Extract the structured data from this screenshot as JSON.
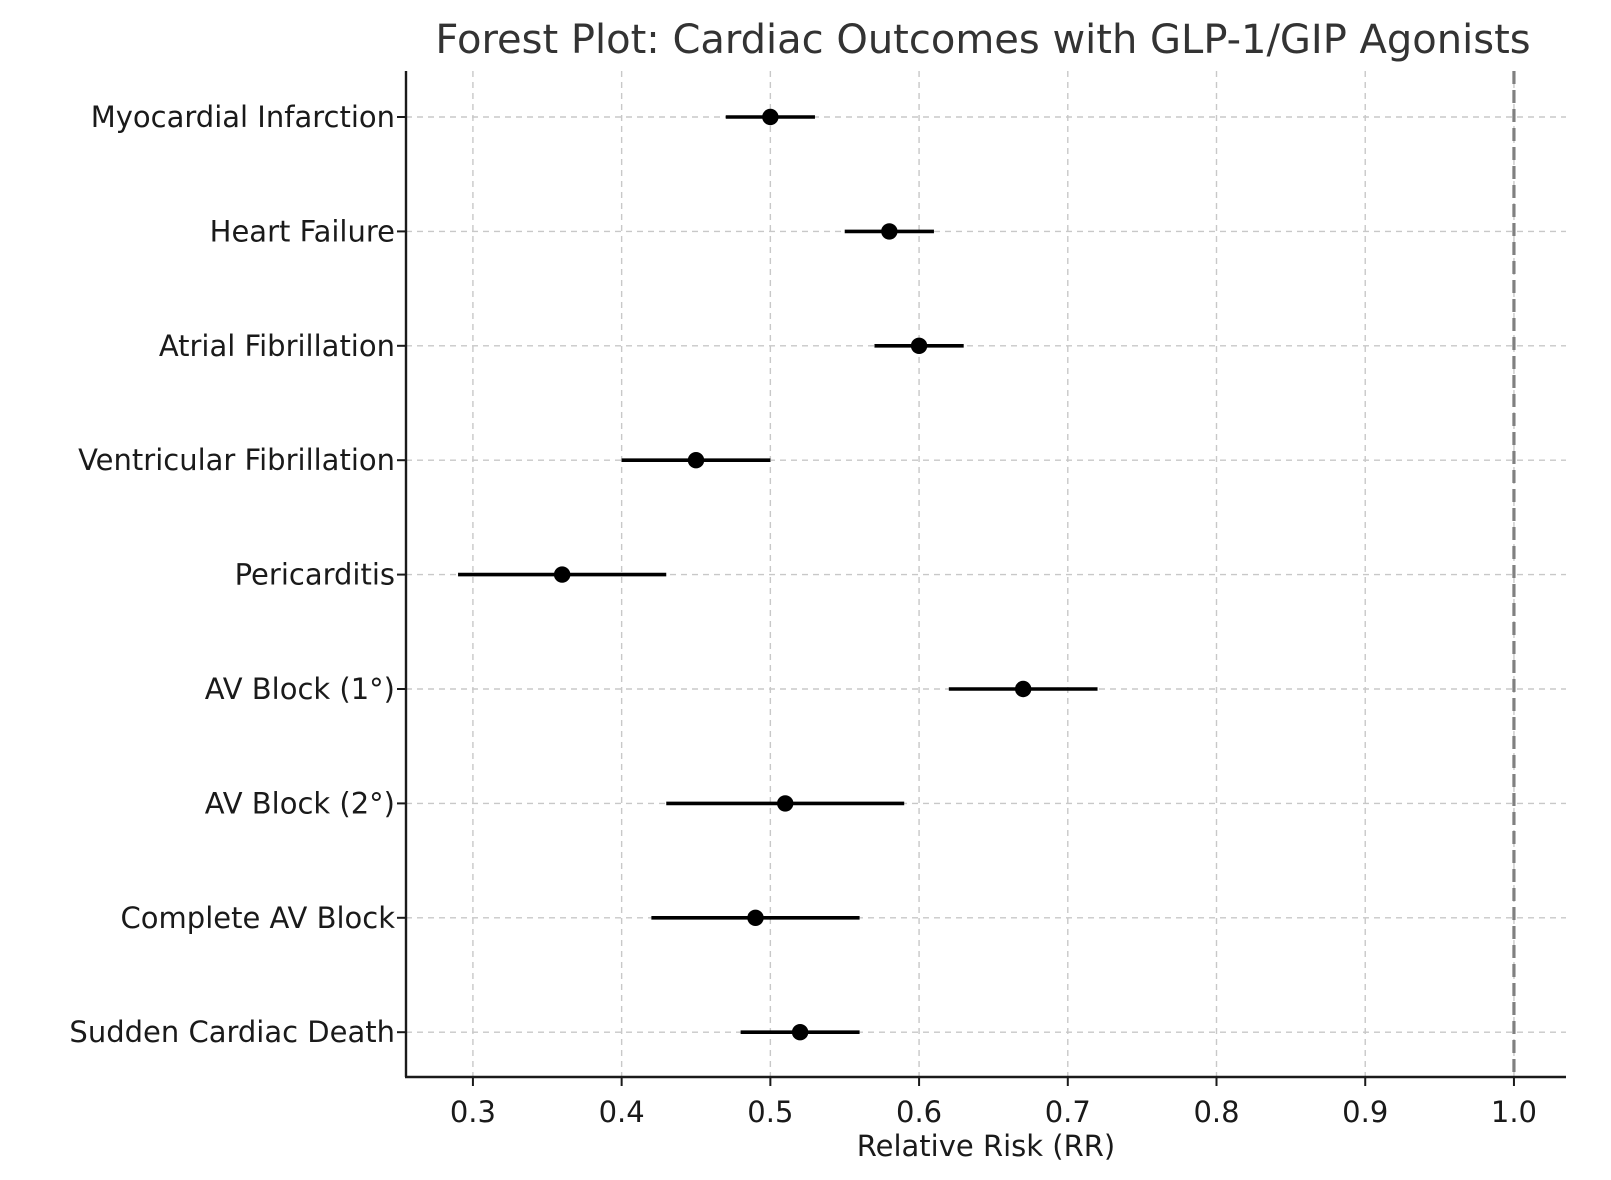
{
  "chart_data": {
    "type": "scatter",
    "subtype": "forest",
    "title": "Forest Plot: Cardiac Outcomes with GLP-1/GIP Agonists",
    "xlabel": "Relative Risk (RR)",
    "ylabel": "",
    "xlim": [
      0.255,
      1.035
    ],
    "xticks": [
      "0.3",
      "0.4",
      "0.5",
      "0.6",
      "0.7",
      "0.8",
      "0.9",
      "1.0"
    ],
    "grid": true,
    "reference_line": {
      "x": 1.0,
      "style": "dashed",
      "color": "#808080"
    },
    "categories": [
      "Myocardial Infarction",
      "Heart Failure",
      "Atrial Fibrillation",
      "Ventricular Fibrillation",
      "Pericarditis",
      "AV Block (1°)",
      "AV Block (2°)",
      "Complete AV Block",
      "Sudden Cardiac Death"
    ],
    "series": [
      {
        "point_estimate": [
          0.5,
          0.58,
          0.6,
          0.45,
          0.36,
          0.67,
          0.51,
          0.49,
          0.52
        ],
        "ci_lower": [
          0.47,
          0.55,
          0.57,
          0.4,
          0.29,
          0.62,
          0.43,
          0.42,
          0.48
        ],
        "ci_upper": [
          0.53,
          0.61,
          0.63,
          0.5,
          0.43,
          0.72,
          0.59,
          0.56,
          0.56
        ]
      }
    ],
    "colors": {
      "marker": "#000000",
      "grid": "#c8c8c8",
      "text": "#1a1a1a",
      "title": "#333333"
    }
  }
}
